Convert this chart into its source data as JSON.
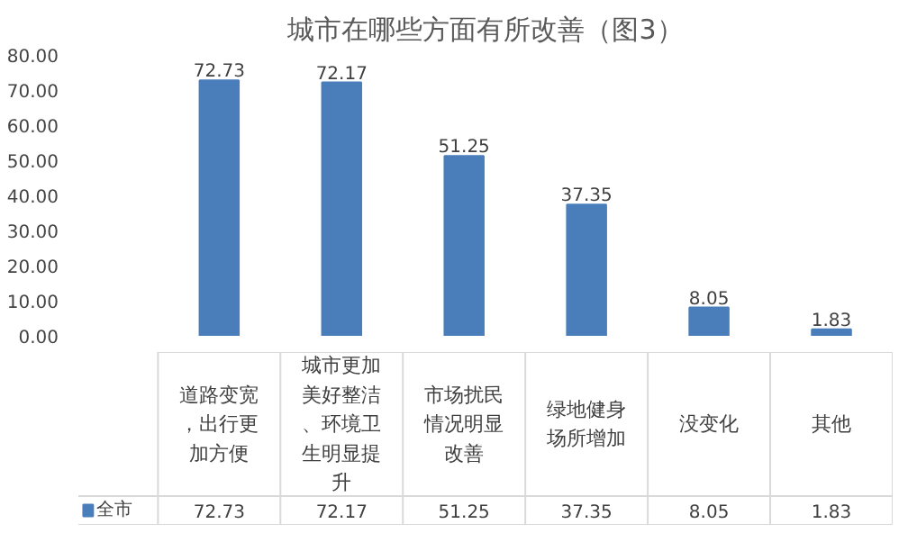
{
  "chart_data": {
    "type": "bar",
    "title": "城市在哪些方面有所改善（图3）",
    "categories": [
      "道路变宽，出行更加方便",
      "城市更加美好整洁、环境卫生明显提升",
      "市场扰民情况明显改善",
      "绿地健身场所增加",
      "没变化",
      "其他"
    ],
    "series": [
      {
        "name": "全市",
        "color": "#4a7ebb",
        "values": [
          72.73,
          72.17,
          51.25,
          37.35,
          8.05,
          1.83
        ],
        "value_labels": [
          "72.73",
          "72.17",
          "51.25",
          "37.35",
          "8.05",
          "1.83"
        ]
      }
    ],
    "ylim": [
      0,
      80
    ],
    "yticks": [
      {
        "value": 0,
        "label": "0.00"
      },
      {
        "value": 10,
        "label": "10.00"
      },
      {
        "value": 20,
        "label": "20.00"
      },
      {
        "value": 30,
        "label": "30.00"
      },
      {
        "value": 40,
        "label": "40.00"
      },
      {
        "value": 50,
        "label": "50.00"
      },
      {
        "value": 60,
        "label": "60.00"
      },
      {
        "value": 70,
        "label": "70.00"
      },
      {
        "value": 80,
        "label": "80.00"
      }
    ],
    "data_labels": true,
    "legend": "bottom",
    "grid": false
  }
}
